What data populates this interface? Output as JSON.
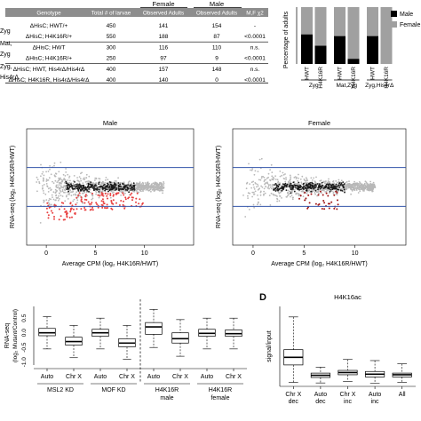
{
  "table": {
    "group_female": "Female",
    "group_male": "Male",
    "columns": [
      "Genotype",
      "Total # of larvae",
      "Observed Adults",
      "Observed Adults",
      "M,F χ2"
    ],
    "row_group_labels": [
      "Zyg",
      "Mat,",
      "Zyg",
      "Zyg,",
      "His4rΔ"
    ],
    "rows": [
      {
        "genotype": "ΔHisC; HWT/+",
        "total": "450",
        "female": "141",
        "male": "154",
        "chi": "-"
      },
      {
        "genotype": "ΔHisC; H4K16R/+",
        "total": "550",
        "female": "188",
        "male": "87",
        "chi": "<0.0001"
      },
      {
        "genotype": "ΔHisC; HWT",
        "total": "300",
        "female": "116",
        "male": "110",
        "chi": "n.s."
      },
      {
        "genotype": "ΔHisC; H4K16R/+",
        "total": "250",
        "female": "97",
        "male": "9",
        "chi": "<0.0001"
      },
      {
        "genotype": "ΔHisC; HWT, His4rΔ/His4rΔ",
        "total": "400",
        "female": "157",
        "male": "148",
        "chi": "n.s."
      },
      {
        "genotype": "ΔHisC; H4K16R, His4rΔ/His4rΔ",
        "total": "400",
        "female": "140",
        "male": "0",
        "chi": "<0.0001"
      }
    ]
  },
  "chart_data": [
    {
      "type": "bar",
      "id": "adult-percentage",
      "ylabel": "Percentage of adults",
      "legend": [
        "Male",
        "Female"
      ],
      "legend_position": "top-right",
      "colors": {
        "Male": "#000000",
        "Female": "#a0a0a0"
      },
      "categories": [
        "HWT",
        "H4K16R",
        "HWT",
        "H4K16R",
        "HWT",
        "H4K16R"
      ],
      "groups": [
        "Zyg",
        "Mat,Zyg",
        "Zyg,His4rΔ"
      ],
      "series": [
        {
          "name": "Male",
          "values": [
            52,
            32,
            49,
            9,
            49,
            0
          ]
        },
        {
          "name": "Female",
          "values": [
            48,
            68,
            51,
            91,
            51,
            100
          ]
        }
      ],
      "ylim": [
        0,
        100
      ]
    },
    {
      "type": "scatter",
      "id": "ma-male",
      "title": "Male",
      "xlabel": "Average CPM (log₂ H4K16R/HWT)",
      "ylabel": "RNA-seq (log₂ H4K16R/HWT)",
      "x_ticks": [
        "0",
        "5",
        "10"
      ],
      "hlines": [
        1,
        -1
      ]
    },
    {
      "type": "scatter",
      "id": "ma-female",
      "title": "Female",
      "xlabel": "Average CPM (log₂ H4K16R/HWT)",
      "ylabel": "RNA-seq (log₂ H4K16R/HWT)",
      "x_ticks": [
        "0",
        "5",
        "10"
      ],
      "hlines": [
        1,
        -1
      ]
    },
    {
      "type": "box",
      "id": "rnaseq-boxes",
      "ylabel_line1": "RNA-seq",
      "ylabel_line2": "(log₂ Mutant/Control)",
      "y_ticks": [
        "0.5",
        "0.0",
        "-0.5",
        "-1.0"
      ],
      "categories": [
        "Auto",
        "Chr X",
        "Auto",
        "Chr X",
        "Auto",
        "Chr X",
        "Auto",
        "Chr X"
      ],
      "groups": [
        "MSL2 KD",
        "MOF KD",
        "H4K16R male",
        "H4K16R female"
      ],
      "boxes": [
        {
          "min": -0.55,
          "q1": -0.1,
          "median": 0.0,
          "q3": 0.15,
          "max": 0.55
        },
        {
          "min": -0.85,
          "q1": -0.42,
          "median": -0.3,
          "q3": -0.15,
          "max": 0.25
        },
        {
          "min": -0.55,
          "q1": -0.12,
          "median": 0.0,
          "q3": 0.12,
          "max": 0.5
        },
        {
          "min": -0.9,
          "q1": -0.48,
          "median": -0.35,
          "q3": -0.2,
          "max": 0.25
        },
        {
          "min": -0.5,
          "q1": -0.05,
          "median": 0.2,
          "q3": 0.35,
          "max": 0.8
        },
        {
          "min": -0.8,
          "q1": -0.35,
          "median": -0.2,
          "q3": 0.0,
          "max": 0.45
        },
        {
          "min": -0.55,
          "q1": -0.12,
          "median": -0.02,
          "q3": 0.12,
          "max": 0.5
        },
        {
          "min": -0.55,
          "q1": -0.12,
          "median": -0.03,
          "q3": 0.1,
          "max": 0.5
        }
      ]
    },
    {
      "type": "box",
      "id": "h4k16ac",
      "panel_letter": "D",
      "title": "H4K16ac",
      "ylabel": "signal/input",
      "categories": [
        "Chr X dec",
        "Auto dec",
        "Chr X inc",
        "Auto inc",
        "All"
      ],
      "category_lines": [
        [
          "Chr X",
          "dec"
        ],
        [
          "Auto",
          "dec"
        ],
        [
          "Chr X",
          "inc"
        ],
        [
          "Auto",
          "inc"
        ],
        [
          "All",
          ""
        ]
      ],
      "boxes": [
        {
          "min": 0.2,
          "q1": 1.8,
          "median": 2.5,
          "q3": 3.2,
          "max": 6.2
        },
        {
          "min": 0.15,
          "q1": 0.65,
          "median": 0.85,
          "q3": 1.05,
          "max": 1.6
        },
        {
          "min": 0.3,
          "q1": 0.9,
          "median": 1.1,
          "q3": 1.3,
          "max": 2.3
        },
        {
          "min": 0.1,
          "q1": 0.7,
          "median": 0.95,
          "q3": 1.2,
          "max": 2.2
        },
        {
          "min": 0.2,
          "q1": 0.7,
          "median": 0.9,
          "q3": 1.05,
          "max": 1.9
        }
      ],
      "ylim": [
        0,
        7
      ]
    }
  ]
}
